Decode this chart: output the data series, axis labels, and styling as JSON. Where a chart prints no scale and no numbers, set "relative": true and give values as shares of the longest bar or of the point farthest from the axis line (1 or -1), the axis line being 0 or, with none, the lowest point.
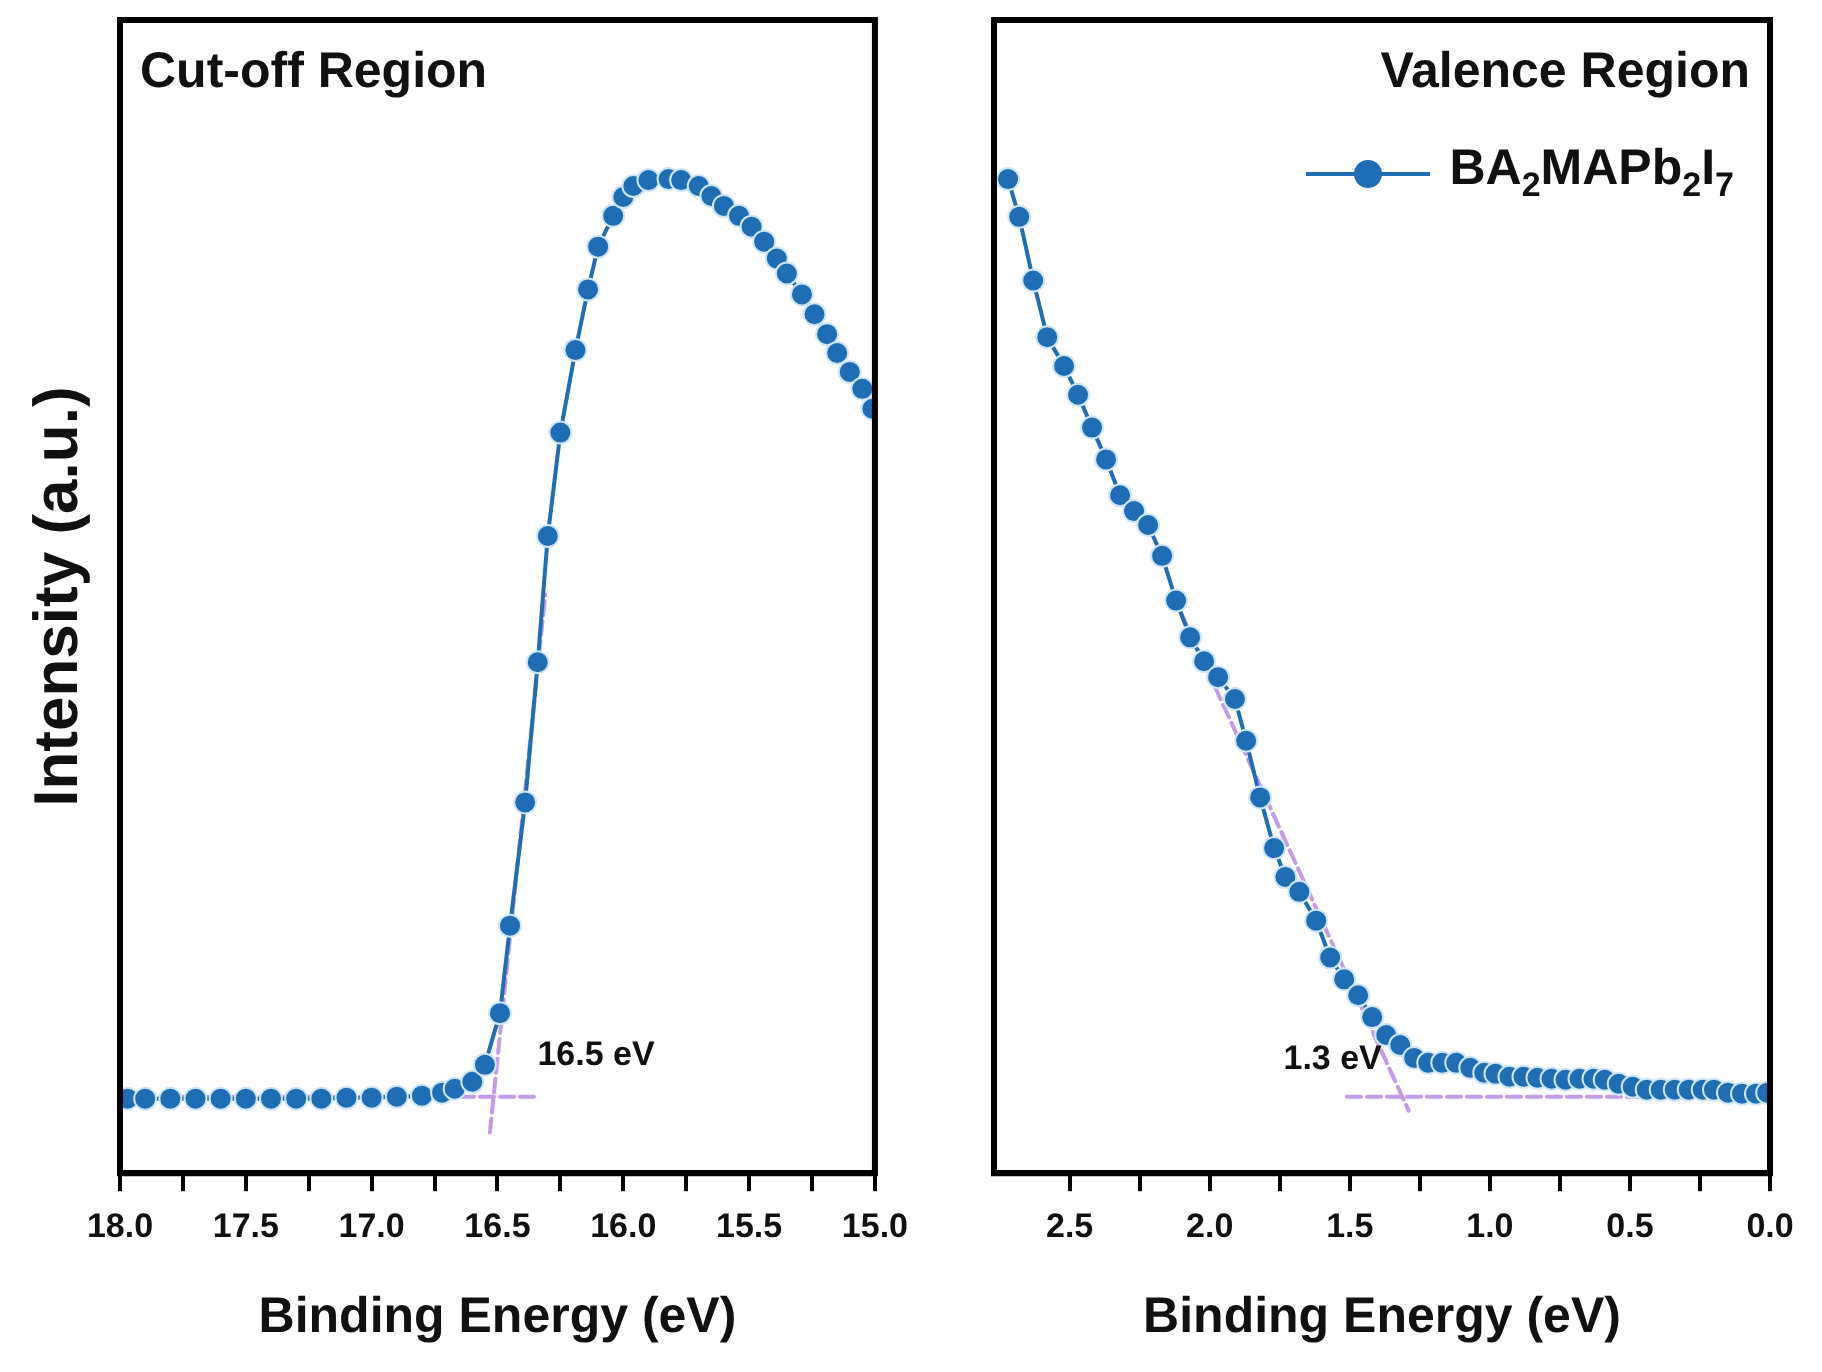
{
  "chart_data": [
    {
      "type": "line",
      "title": "Cut-off Region",
      "xlabel": "Binding Energy (eV)",
      "ylabel": "Intensity (a.u.)",
      "relative": true,
      "marker": "circle",
      "line_style": "solid",
      "xlim": [
        18.0,
        15.0
      ],
      "xticks": [
        {
          "value": 18.0,
          "label": "18.0"
        },
        {
          "value": 17.75,
          "label": null
        },
        {
          "value": 17.5,
          "label": "17.5"
        },
        {
          "value": 17.25,
          "label": null
        },
        {
          "value": 17.0,
          "label": "17.0"
        },
        {
          "value": 16.75,
          "label": null
        },
        {
          "value": 16.5,
          "label": "16.5"
        },
        {
          "value": 16.25,
          "label": null
        },
        {
          "value": 16.0,
          "label": "16.0"
        },
        {
          "value": 15.75,
          "label": null
        },
        {
          "value": 15.5,
          "label": "15.5"
        },
        {
          "value": 15.25,
          "label": null
        },
        {
          "value": 15.0,
          "label": "15.0"
        }
      ],
      "annotations": [
        {
          "text": "16.5 eV",
          "x": 16.5,
          "y": 0.077
        }
      ],
      "series": [
        {
          "color": "#1f6eb5",
          "x": [
            17.97,
            17.9,
            17.8,
            17.7,
            17.6,
            17.5,
            17.4,
            17.3,
            17.2,
            17.1,
            17.0,
            16.9,
            16.8,
            16.72,
            16.67,
            16.6,
            16.55,
            16.49,
            16.45,
            16.39,
            16.34,
            16.3,
            16.25,
            16.19,
            16.14,
            16.1,
            16.04,
            16.0,
            15.96,
            15.9,
            15.82,
            15.77,
            15.7,
            15.65,
            15.6,
            15.54,
            15.49,
            15.44,
            15.39,
            15.35,
            15.29,
            15.24,
            15.19,
            15.15,
            15.1,
            15.05,
            15.01
          ],
          "values": [
            0.075,
            0.075,
            0.075,
            0.075,
            0.075,
            0.075,
            0.075,
            0.075,
            0.075,
            0.076,
            0.076,
            0.077,
            0.078,
            0.081,
            0.085,
            0.092,
            0.109,
            0.161,
            0.249,
            0.373,
            0.514,
            0.641,
            0.745,
            0.828,
            0.889,
            0.932,
            0.963,
            0.982,
            0.993,
            0.999,
            1.0,
            0.999,
            0.993,
            0.983,
            0.973,
            0.963,
            0.952,
            0.937,
            0.92,
            0.905,
            0.884,
            0.864,
            0.844,
            0.825,
            0.806,
            0.789,
            0.769
          ]
        },
        {
          "type": "line",
          "color": "#c49be8",
          "marker": "none",
          "line_style": "dashed",
          "x": [
            18.0,
            16.35
          ],
          "values": [
            0.077,
            0.077
          ]
        },
        {
          "type": "line",
          "color": "#c49be8",
          "marker": "none",
          "line_style": "dashed",
          "x": [
            16.53,
            16.31
          ],
          "values": [
            0.041,
            0.582
          ]
        }
      ]
    },
    {
      "type": "line",
      "title": "Valence Region",
      "xlabel": "Binding Energy (eV)",
      "relative": true,
      "marker": "circle",
      "line_style": "solid",
      "legend": "top right",
      "xlim": [
        2.77,
        0.0
      ],
      "xticks": [
        {
          "value": 2.5,
          "label": "2.5"
        },
        {
          "value": 2.25,
          "label": null
        },
        {
          "value": 2.0,
          "label": "2.0"
        },
        {
          "value": 1.75,
          "label": null
        },
        {
          "value": 1.5,
          "label": "1.5"
        },
        {
          "value": 1.25,
          "label": null
        },
        {
          "value": 1.0,
          "label": "1.0"
        },
        {
          "value": 0.75,
          "label": null
        },
        {
          "value": 0.5,
          "label": "0.5"
        },
        {
          "value": 0.25,
          "label": null
        },
        {
          "value": 0.0,
          "label": "0.0"
        }
      ],
      "annotations": [
        {
          "text": "1.3 eV",
          "x": 1.3,
          "y": 0.077
        }
      ],
      "series": [
        {
          "name": "BA$_{2}$MAPb$_{2}$I$_{7}$",
          "color": "#1f6eb5",
          "x": [
            2.72,
            2.68,
            2.63,
            2.58,
            2.52,
            2.47,
            2.42,
            2.37,
            2.32,
            2.27,
            2.22,
            2.17,
            2.12,
            2.07,
            2.02,
            1.97,
            1.91,
            1.87,
            1.82,
            1.77,
            1.73,
            1.68,
            1.62,
            1.57,
            1.52,
            1.47,
            1.42,
            1.37,
            1.32,
            1.27,
            1.22,
            1.17,
            1.12,
            1.07,
            1.02,
            0.98,
            0.93,
            0.88,
            0.83,
            0.78,
            0.73,
            0.68,
            0.63,
            0.59,
            0.54,
            0.49,
            0.44,
            0.39,
            0.34,
            0.29,
            0.24,
            0.2,
            0.15,
            0.1,
            0.05,
            0.01
          ],
          "values": [
            1.0,
            0.962,
            0.898,
            0.841,
            0.812,
            0.783,
            0.75,
            0.718,
            0.682,
            0.666,
            0.652,
            0.621,
            0.576,
            0.539,
            0.515,
            0.499,
            0.477,
            0.435,
            0.378,
            0.327,
            0.298,
            0.283,
            0.254,
            0.217,
            0.195,
            0.179,
            0.157,
            0.139,
            0.129,
            0.116,
            0.111,
            0.111,
            0.111,
            0.106,
            0.101,
            0.1,
            0.097,
            0.097,
            0.096,
            0.095,
            0.094,
            0.095,
            0.095,
            0.094,
            0.09,
            0.087,
            0.084,
            0.084,
            0.084,
            0.084,
            0.084,
            0.084,
            0.081,
            0.08,
            0.08,
            0.081
          ]
        },
        {
          "type": "line",
          "color": "#c49be8",
          "marker": "none",
          "line_style": "dashed",
          "x": [
            1.51,
            0.24
          ],
          "values": [
            0.077,
            0.077
          ]
        },
        {
          "type": "line",
          "color": "#c49be8",
          "marker": "none",
          "line_style": "dashed",
          "x": [
            2.13,
            1.29
          ],
          "values": [
            0.581,
            0.063
          ]
        }
      ]
    }
  ]
}
